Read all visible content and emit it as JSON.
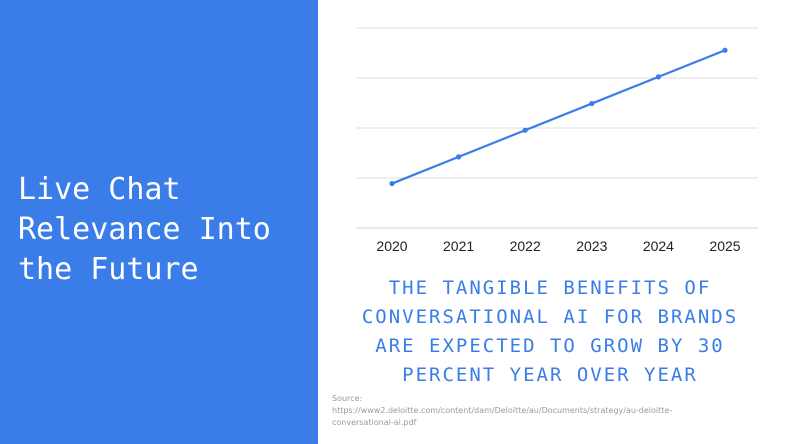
{
  "headline": [
    "Live Chat",
    "Relevance Into",
    "the Future"
  ],
  "caption": [
    "THE TANGIBLE BENEFITS OF",
    "CONVERSATIONAL AI FOR BRANDS",
    "ARE EXPECTED TO GROW BY 30",
    "PERCENT YEAR OVER YEAR"
  ],
  "source": [
    "Source:",
    "https://www2.deloitte.com/content/dam/Deloitte/au/Documents/strategy/au-deloitte-",
    "conversational-ai.pdf"
  ],
  "colors": {
    "panel": "#3a7de8",
    "line": "#3a7de8",
    "grid": "#dddddd",
    "caption": "#3a7de8"
  },
  "chart_data": {
    "type": "line",
    "categories": [
      "2020",
      "2021",
      "2022",
      "2023",
      "2024",
      "2025"
    ],
    "values": [
      1,
      1.6,
      2.2,
      2.8,
      3.4,
      4.0
    ],
    "ylim": [
      0,
      4.5
    ],
    "grid": true,
    "title": "",
    "xlabel": "",
    "ylabel": ""
  }
}
